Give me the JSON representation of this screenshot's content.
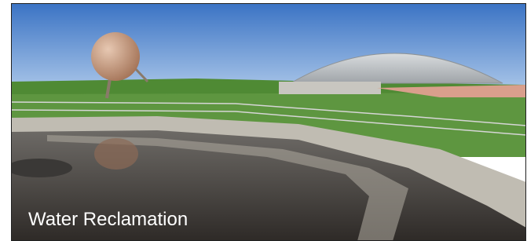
{
  "caption": "Water Reclamation"
}
